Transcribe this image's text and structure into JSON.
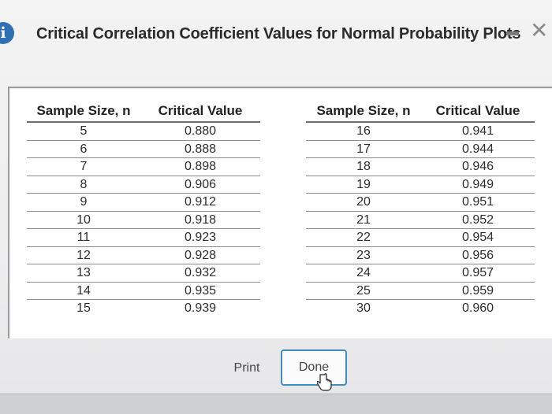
{
  "dialog": {
    "title": "Critical Correlation Coefficient Values for Normal Probability Plots",
    "info_icon_glyph": "i",
    "close_glyph": "✕",
    "accent_color": "#2f6fb3"
  },
  "table_left": {
    "headers": [
      "Sample Size, n",
      "Critical Value"
    ],
    "rows": [
      [
        "5",
        "0.880"
      ],
      [
        "6",
        "0.888"
      ],
      [
        "7",
        "0.898"
      ],
      [
        "8",
        "0.906"
      ],
      [
        "9",
        "0.912"
      ],
      [
        "10",
        "0.918"
      ],
      [
        "11",
        "0.923"
      ],
      [
        "12",
        "0.928"
      ],
      [
        "13",
        "0.932"
      ],
      [
        "14",
        "0.935"
      ],
      [
        "15",
        "0.939"
      ]
    ]
  },
  "table_right": {
    "headers": [
      "Sample Size, n",
      "Critical Value"
    ],
    "rows": [
      [
        "16",
        "0.941"
      ],
      [
        "17",
        "0.944"
      ],
      [
        "18",
        "0.946"
      ],
      [
        "19",
        "0.949"
      ],
      [
        "20",
        "0.951"
      ],
      [
        "21",
        "0.952"
      ],
      [
        "22",
        "0.954"
      ],
      [
        "23",
        "0.956"
      ],
      [
        "24",
        "0.957"
      ],
      [
        "25",
        "0.959"
      ],
      [
        "30",
        "0.960"
      ]
    ]
  },
  "buttons": {
    "print_label": "Print",
    "done_label": "Done"
  }
}
